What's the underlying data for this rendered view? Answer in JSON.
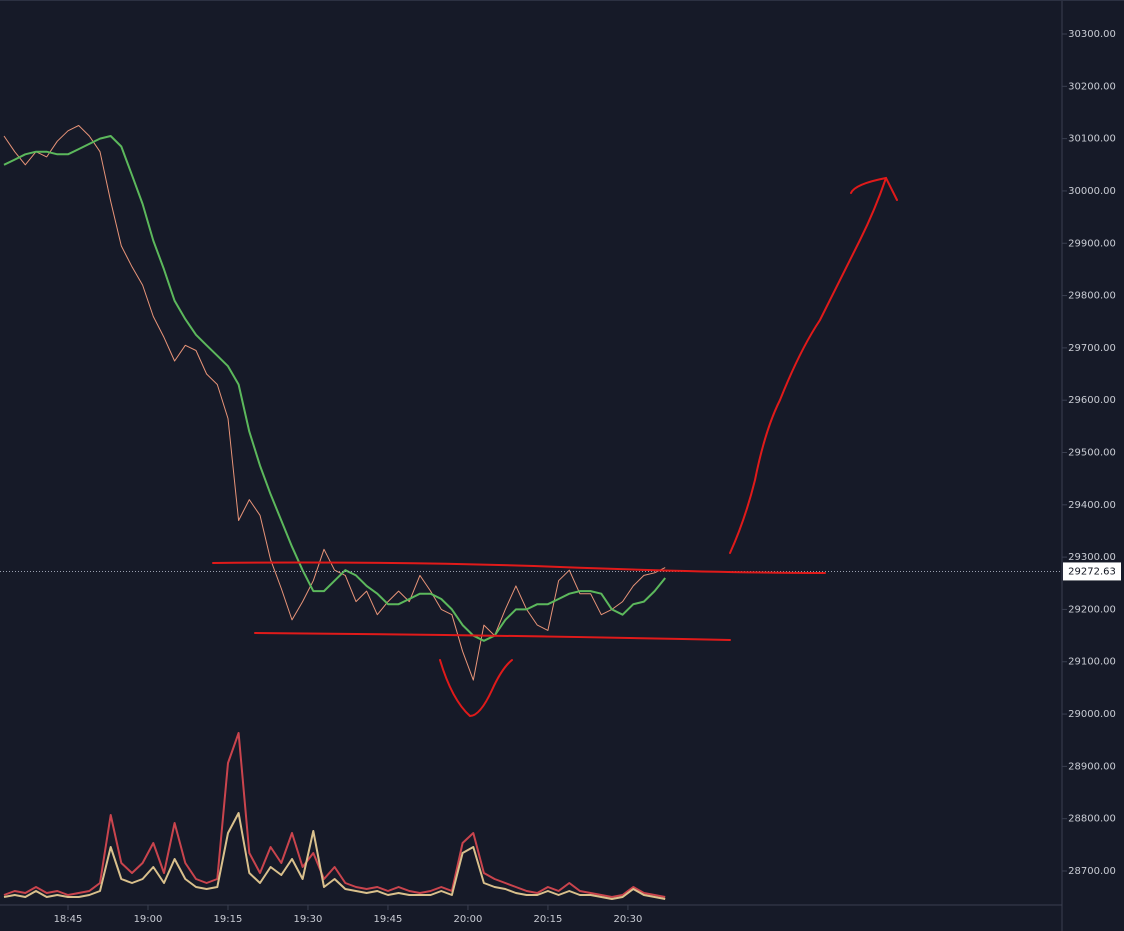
{
  "chart_data": {
    "type": "line",
    "x": [
      1113,
      1115,
      1117,
      1119,
      1121,
      1123,
      1125,
      1127,
      1129,
      1131,
      1133,
      1135,
      1137,
      1139,
      1141,
      1143,
      1145,
      1147,
      1149,
      1151,
      1153,
      1155,
      1157,
      1159,
      1161,
      1163,
      1165,
      1167,
      1169,
      1171,
      1173,
      1175,
      1177,
      1179,
      1181,
      1183,
      1185,
      1187,
      1189,
      1191,
      1193,
      1195,
      1197,
      1199,
      1201,
      1203,
      1205,
      1207,
      1209,
      1211,
      1213,
      1215,
      1217,
      1219,
      1221,
      1223,
      1225,
      1227,
      1229,
      1231,
      1233,
      1235,
      1237
    ],
    "series": [
      {
        "color": "#e89478",
        "values": [
          30105,
          30075,
          30050,
          30075,
          30065,
          30095,
          30115,
          30125,
          30105,
          30075,
          29980,
          29895,
          29855,
          29820,
          29760,
          29720,
          29675,
          29705,
          29695,
          29650,
          29630,
          29565,
          29370,
          29410,
          29380,
          29295,
          29240,
          29180,
          29215,
          29255,
          29315,
          29275,
          29265,
          29215,
          29235,
          29190,
          29215,
          29235,
          29215,
          29265,
          29235,
          29200,
          29190,
          29120,
          29065,
          29170,
          29150,
          29200,
          29245,
          29200,
          29170,
          29160,
          29255,
          29275,
          29230,
          29230,
          29190,
          29200,
          29215,
          29245,
          29265,
          29270,
          29280
        ]
      },
      {
        "color": "#5cb85c",
        "values": [
          30050,
          30060,
          30070,
          30075,
          30075,
          30070,
          30070,
          30080,
          30090,
          30100,
          30105,
          30085,
          30030,
          29975,
          29905,
          29850,
          29790,
          29755,
          29725,
          29705,
          29685,
          29665,
          29630,
          29540,
          29475,
          29420,
          29370,
          29320,
          29275,
          29235,
          29235,
          29255,
          29275,
          29265,
          29245,
          29230,
          29210,
          29210,
          29220,
          29230,
          29230,
          29220,
          29200,
          29170,
          29150,
          29140,
          29150,
          29180,
          29200,
          29200,
          29210,
          29210,
          29220,
          29230,
          29235,
          29235,
          29230,
          29200,
          29190,
          29210,
          29215,
          29235,
          29260
        ]
      }
    ],
    "volume": {
      "ylim": [
        0,
        100
      ],
      "series": [
        {
          "color": "#c9444d",
          "values": [
            4,
            6,
            5,
            8,
            5,
            6,
            4,
            5,
            6,
            10,
            44,
            20,
            15,
            20,
            30,
            15,
            40,
            20,
            12,
            10,
            12,
            70,
            85,
            25,
            15,
            28,
            20,
            35,
            18,
            25,
            12,
            18,
            10,
            8,
            7,
            8,
            6,
            8,
            6,
            5,
            6,
            8,
            6,
            30,
            35,
            15,
            12,
            10,
            8,
            6,
            5,
            8,
            6,
            10,
            6,
            5,
            4,
            3,
            4,
            8,
            5,
            4,
            3
          ]
        },
        {
          "color": "#d9c08c",
          "values": [
            3,
            4,
            3,
            6,
            3,
            4,
            3,
            3,
            4,
            6,
            28,
            12,
            10,
            12,
            18,
            10,
            22,
            12,
            8,
            7,
            8,
            35,
            45,
            15,
            10,
            18,
            14,
            22,
            12,
            36,
            8,
            12,
            7,
            6,
            5,
            6,
            4,
            5,
            4,
            4,
            4,
            6,
            4,
            25,
            28,
            10,
            8,
            7,
            5,
            4,
            4,
            6,
            4,
            6,
            4,
            4,
            3,
            2,
            3,
            7,
            4,
            3,
            2
          ]
        }
      ]
    },
    "last_price": 29272.63,
    "xlim": [
      1112.25,
      1311.4
    ],
    "ylim": [
      28635,
      30365
    ],
    "xticks": [
      {
        "value": 1125,
        "label": "18:45"
      },
      {
        "value": 1140,
        "label": "19:00"
      },
      {
        "value": 1155,
        "label": "19:15"
      },
      {
        "value": 1170,
        "label": "19:30"
      },
      {
        "value": 1185,
        "label": "19:45"
      },
      {
        "value": 1200,
        "label": "20:00"
      },
      {
        "value": 1215,
        "label": "20:15"
      },
      {
        "value": 1230,
        "label": "20:30"
      }
    ],
    "yticks": [
      {
        "value": 28700,
        "label": "28700.00"
      },
      {
        "value": 28800,
        "label": "28800.00"
      },
      {
        "value": 28900,
        "label": "28900.00"
      },
      {
        "value": 29000,
        "label": "29000.00"
      },
      {
        "value": 29100,
        "label": "29100.00"
      },
      {
        "value": 29200,
        "label": "29200.00"
      },
      {
        "value": 29300,
        "label": "29300.00"
      },
      {
        "value": 29400,
        "label": "29400.00"
      },
      {
        "value": 29500,
        "label": "29500.00"
      },
      {
        "value": 29600,
        "label": "29600.00"
      },
      {
        "value": 29700,
        "label": "29700.00"
      },
      {
        "value": 29800,
        "label": "29800.00"
      },
      {
        "value": 29900,
        "label": "29900.00"
      },
      {
        "value": 30000,
        "label": "30000.00"
      },
      {
        "value": 30100,
        "label": "30100.00"
      },
      {
        "value": 30200,
        "label": "30200.00"
      },
      {
        "value": 30300,
        "label": "30300.00"
      }
    ]
  }
}
